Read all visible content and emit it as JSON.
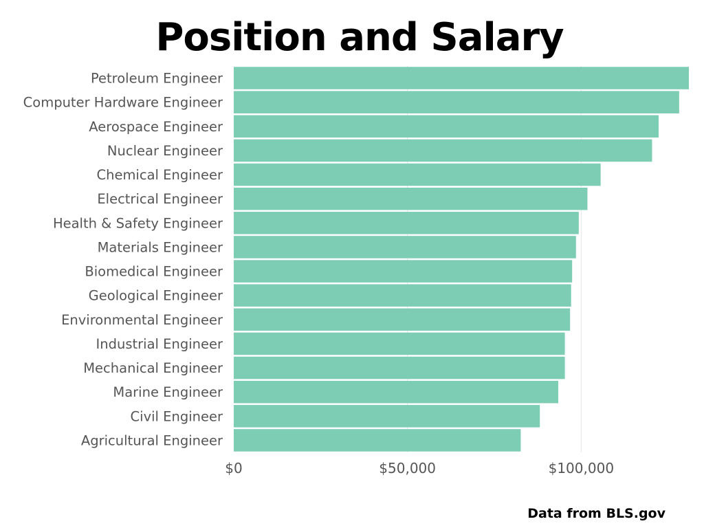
{
  "chart_data": {
    "type": "bar",
    "orientation": "horizontal",
    "title": "Position and Salary",
    "xlabel": "",
    "ylabel": "",
    "categories": [
      "Petroleum Engineer",
      "Computer Hardware Engineer",
      "Aerospace Engineer",
      "Nuclear Engineer",
      "Chemical Engineer",
      "Electrical Engineer",
      "Health & Safety Engineer",
      "Materials Engineer",
      "Biomedical Engineer",
      "Geological Engineer",
      "Environmental Engineer",
      "Industrial Engineer",
      "Mechanical Engineer",
      "Marine Engineer",
      "Civil Engineer",
      "Agricultural Engineer"
    ],
    "values": [
      131000,
      128200,
      122300,
      120400,
      105600,
      101800,
      99300,
      98500,
      97400,
      97100,
      96800,
      95300,
      95300,
      93400,
      88100,
      82600
    ],
    "xlim": [
      0,
      131000
    ],
    "x_ticks": [
      0,
      50000,
      100000
    ],
    "x_tick_labels": [
      "$0",
      "$50,000",
      "$100,000"
    ],
    "grid": "vertical gridlines",
    "bar_color": "#7ccdb4",
    "source": "Data from BLS.gov"
  }
}
